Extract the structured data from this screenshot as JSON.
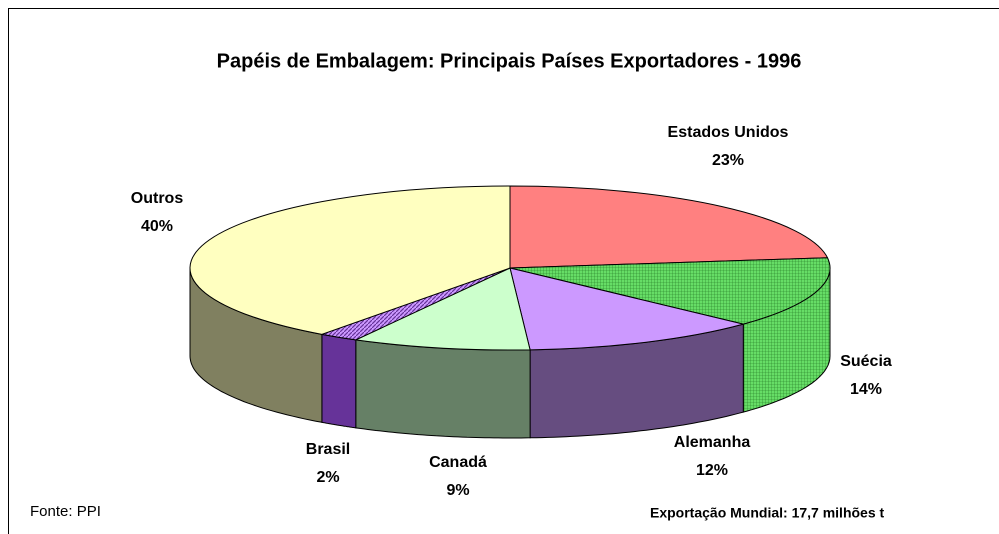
{
  "chart_data": {
    "type": "pie3d",
    "title": "Papéis de Embalagem: Principais Países Exportadores - 1996",
    "categories": [
      "Estados Unidos",
      "Suécia",
      "Alemanha",
      "Canadá",
      "Brasil",
      "Outros"
    ],
    "values": [
      23,
      14,
      12,
      9,
      2,
      40
    ],
    "value_labels": [
      "23%",
      "14%",
      "12%",
      "9%",
      "2%",
      "40%"
    ],
    "colors": [
      "#ff8080",
      "#66dd66",
      "#cc99ff",
      "#ccffcc",
      "#9933cc",
      "#ffffc0"
    ],
    "side_colors": [
      "#cc6666",
      "#339933",
      "#664d80",
      "#668066",
      "#663399",
      "#808060"
    ],
    "source": "Fonte: PPI",
    "note": "Exportação Mundial: 17,7 milhões t"
  }
}
